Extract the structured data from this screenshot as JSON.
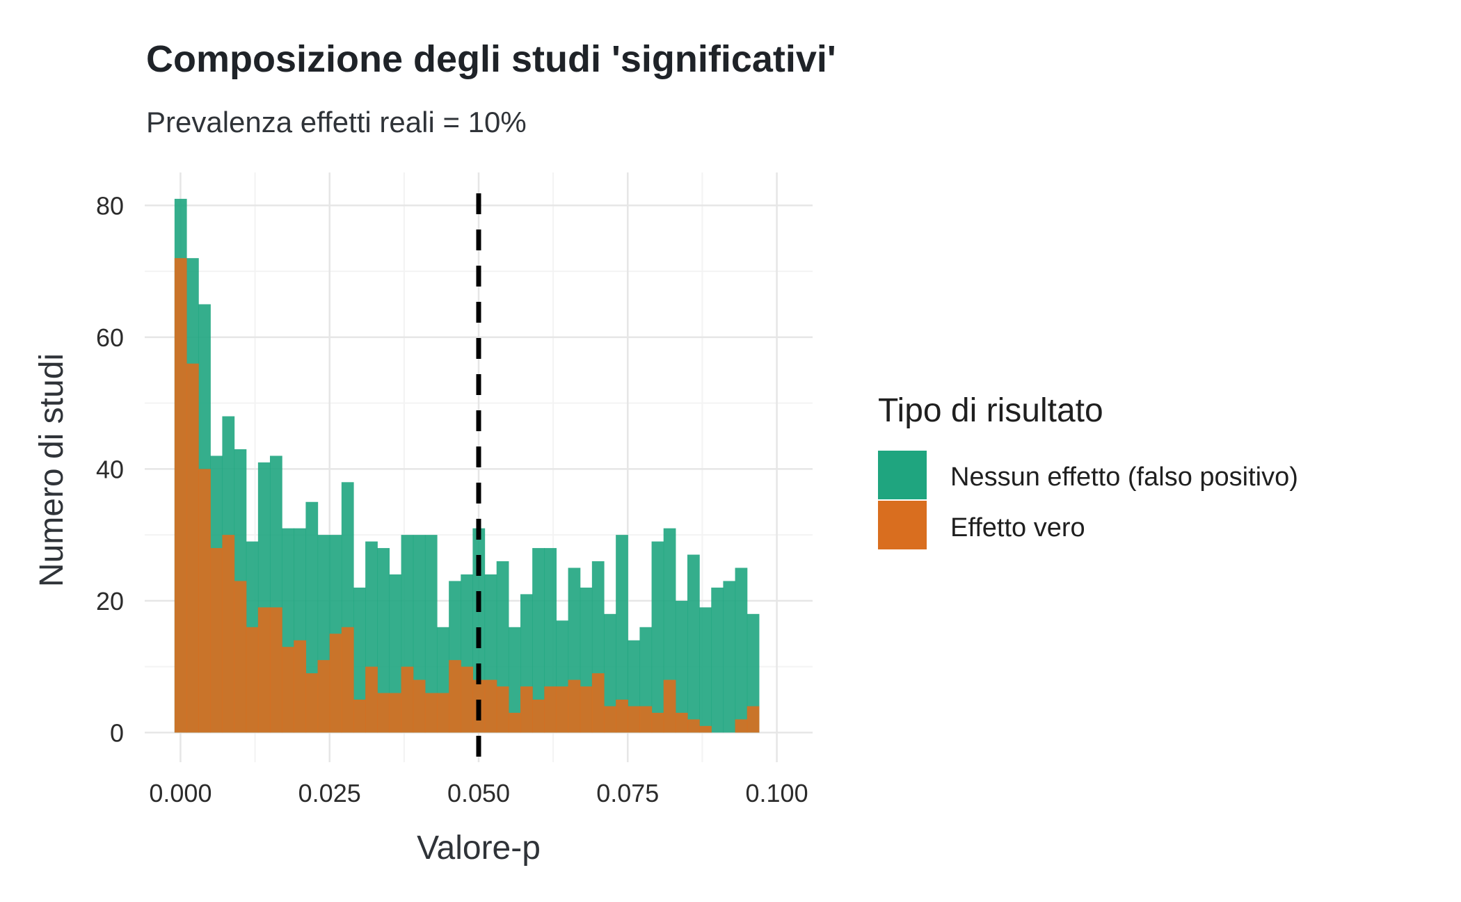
{
  "chart_data": {
    "type": "histogram",
    "title": "Composizione degli studi 'significativi'",
    "subtitle": "Prevalenza effetti reali = 10%",
    "xlabel": "Valore-p",
    "ylabel": "Numero di studi",
    "xlim": [
      -0.006,
      0.106
    ],
    "ylim": [
      -4.5,
      85
    ],
    "x_ticks": [
      "0.000",
      "0.025",
      "0.050",
      "0.075",
      "0.100"
    ],
    "x_tick_values": [
      0,
      0.025,
      0.05,
      0.075,
      0.1
    ],
    "y_ticks": [
      "0",
      "20",
      "40",
      "60",
      "80"
    ],
    "y_tick_values": [
      0,
      20,
      40,
      60,
      80
    ],
    "bin_start": -0.001,
    "bin_width": 0.002,
    "vline": {
      "x": 0.05,
      "style": "dashed",
      "color": "#000000"
    },
    "grid": true,
    "legend": {
      "title": "Tipo di risultato",
      "position": "right"
    },
    "series": [
      {
        "name": "Nessun effetto (falso positivo)",
        "color": "#1fa57f",
        "values": [
          81,
          72,
          65,
          42,
          48,
          43,
          29,
          41,
          42,
          31,
          31,
          35,
          30,
          30,
          38,
          22,
          29,
          28,
          24,
          30,
          30,
          30,
          16,
          23,
          24,
          31,
          24,
          26,
          16,
          21,
          28,
          28,
          17,
          25,
          22,
          26,
          18,
          30,
          14,
          16,
          29,
          31,
          20,
          27,
          19,
          22,
          23,
          25,
          18
        ]
      },
      {
        "name": "Effetto vero",
        "color": "#d96e1f",
        "values": [
          72,
          56,
          40,
          28,
          30,
          23,
          16,
          19,
          19,
          13,
          14,
          9,
          11,
          15,
          16,
          5,
          10,
          6,
          6,
          10,
          8,
          6,
          6,
          11,
          10,
          8,
          8,
          7,
          3,
          7,
          5,
          7,
          7,
          8,
          7,
          9,
          4,
          5,
          4,
          4,
          3,
          8,
          3,
          2,
          1,
          0,
          0,
          2,
          4
        ]
      }
    ]
  }
}
